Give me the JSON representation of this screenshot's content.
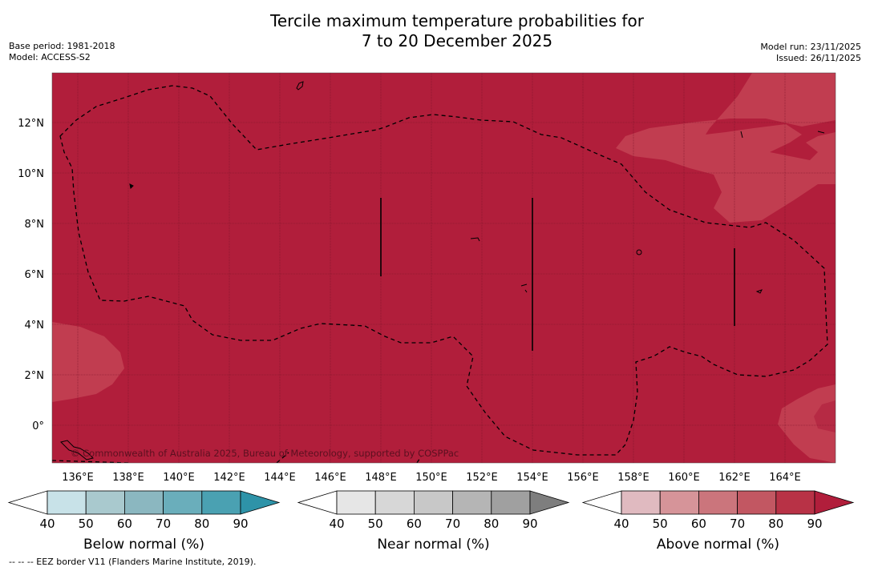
{
  "header": {
    "title_line1": "Tercile maximum temperature probabilities for",
    "title_line2": "7 to 20 December 2025",
    "base_period": "Base period: 1981-2018",
    "model": "Model: ACCESS-S2",
    "model_run": "Model run: 23/11/2025",
    "issued": "Issued: 26/11/2025"
  },
  "map": {
    "lon_labels": [
      "136°E",
      "138°E",
      "140°E",
      "142°E",
      "144°E",
      "146°E",
      "148°E",
      "150°E",
      "152°E",
      "154°E",
      "156°E",
      "158°E",
      "160°E",
      "162°E",
      "164°E"
    ],
    "lat_labels": [
      "12°N",
      "10°N",
      "8°N",
      "6°N",
      "4°N",
      "2°N",
      "0°"
    ],
    "copyright": "© Commonwealth of Australia 2025, Bureau of Meteorology, supported by COSPPac",
    "base_color": "#b11e3b",
    "light_color": "#c13d50"
  },
  "legends": [
    {
      "title": "Below normal (%)",
      "ticks": [
        "40",
        "50",
        "60",
        "70",
        "80",
        "90"
      ],
      "colors": [
        "#ffffff",
        "#c8e2e8",
        "#a9c9ce",
        "#8bb7c0",
        "#6aaebb",
        "#4aa1b2",
        "#2e93a8"
      ]
    },
    {
      "title": "Near normal (%)",
      "ticks": [
        "40",
        "50",
        "60",
        "70",
        "80",
        "90"
      ],
      "colors": [
        "#ffffff",
        "#e6e6e6",
        "#d7d7d7",
        "#c8c8c8",
        "#b5b5b5",
        "#a0a0a0",
        "#7e7e7e"
      ]
    },
    {
      "title": "Above normal (%)",
      "ticks": [
        "40",
        "50",
        "60",
        "70",
        "80",
        "90"
      ],
      "colors": [
        "#ffffff",
        "#e0bac0",
        "#d69499",
        "#cb757c",
        "#c25762",
        "#b83246",
        "#b11e3b"
      ]
    }
  ],
  "footer": "--  --  -- EEZ border V11 (Flanders Marine Institute, 2019)."
}
